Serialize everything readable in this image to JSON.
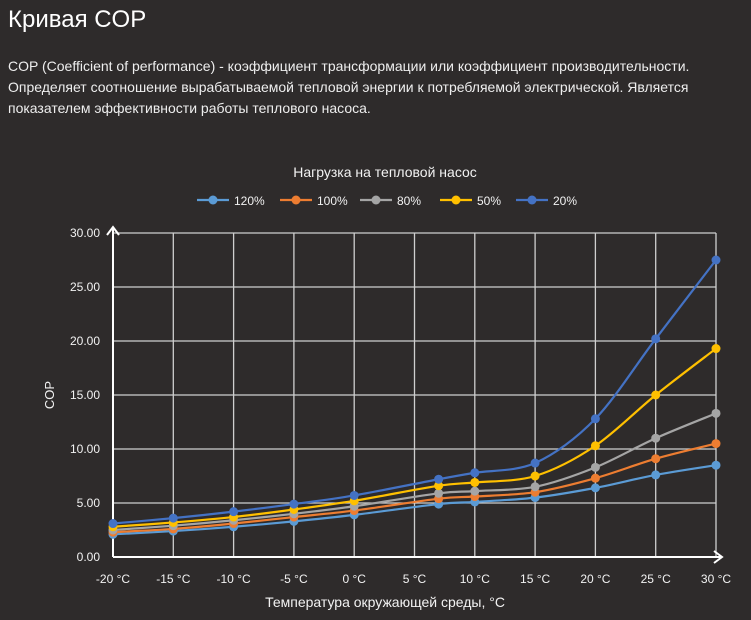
{
  "page": {
    "title": "Кривая COP",
    "description_lines": [
      "COP (Coefficient of performance) - коэффициент трансформации или коэффициент производительности.",
      "Определяет соотношение вырабатываемой тепловой энергии к потребляемой электрической. Является",
      "показателем эффективности работы теплового насоса."
    ]
  },
  "chart_data": {
    "type": "line",
    "title": "Нагрузка на тепловой насос",
    "xlabel": "Температура окружающей среды, °C",
    "ylabel": "COP",
    "x": [
      -20,
      -15,
      -10,
      -5,
      0,
      7,
      10,
      15,
      20,
      25,
      30
    ],
    "xlim": [
      -20,
      30
    ],
    "ylim": [
      0,
      30
    ],
    "x_ticks": [
      -20,
      -15,
      -10,
      -5,
      0,
      5,
      10,
      15,
      20,
      25,
      30
    ],
    "x_tick_labels": [
      "-20 °C",
      "-15 °C",
      "-10 °C",
      "-5 °C",
      "0 °C",
      "5 °C",
      "10 °C",
      "15 °C",
      "20 °C",
      "25 °C",
      "30 °C"
    ],
    "y_ticks": [
      0,
      5,
      10,
      15,
      20,
      25,
      30
    ],
    "y_tick_labels": [
      "0.00",
      "5.00",
      "10.00",
      "15.00",
      "20.00",
      "25.00",
      "30.00"
    ],
    "grid": true,
    "legend_position": "top",
    "series": [
      {
        "name": "120%",
        "color": "#5b9bd5",
        "values": [
          2.1,
          2.4,
          2.8,
          3.3,
          3.9,
          4.9,
          5.1,
          5.5,
          6.4,
          7.6,
          8.5
        ]
      },
      {
        "name": "100%",
        "color": "#ed7d31",
        "values": [
          2.3,
          2.6,
          3.1,
          3.7,
          4.3,
          5.4,
          5.6,
          6.0,
          7.3,
          9.1,
          10.5
        ]
      },
      {
        "name": "80%",
        "color": "#a5a5a5",
        "values": [
          2.5,
          2.9,
          3.4,
          4.0,
          4.7,
          5.9,
          6.1,
          6.5,
          8.3,
          11.0,
          13.3
        ]
      },
      {
        "name": "50%",
        "color": "#ffc000",
        "values": [
          2.8,
          3.2,
          3.7,
          4.4,
          5.2,
          6.6,
          6.9,
          7.5,
          10.3,
          15.0,
          19.3
        ]
      },
      {
        "name": "20%",
        "color": "#4472c4",
        "values": [
          3.1,
          3.6,
          4.2,
          4.9,
          5.7,
          7.2,
          7.8,
          8.7,
          12.8,
          20.2,
          27.5
        ]
      }
    ]
  }
}
